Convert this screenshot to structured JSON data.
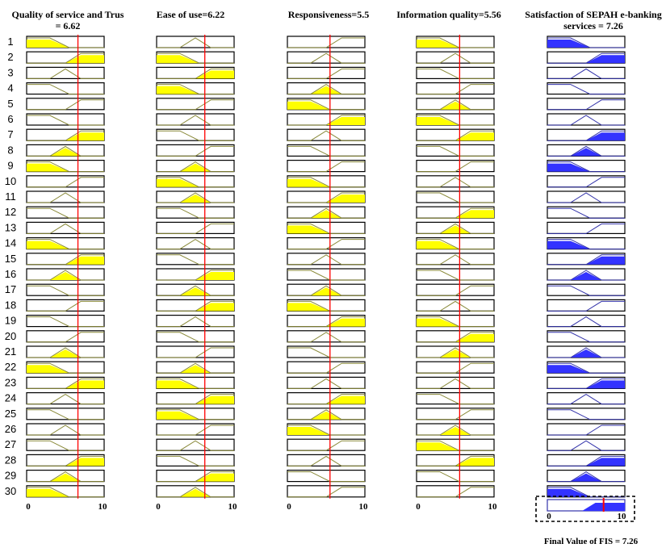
{
  "viewer": {
    "columns": [
      {
        "title_lines": [
          "Quality of service and Trus",
          "= 6.62"
        ],
        "value": 6.62,
        "kind": "input"
      },
      {
        "title_lines": [
          "Ease of use=6.22"
        ],
        "value": 6.22,
        "kind": "input"
      },
      {
        "title_lines": [
          "Responsiveness=5.5"
        ],
        "value": 5.5,
        "kind": "input"
      },
      {
        "title_lines": [
          "Information quality=5.56"
        ],
        "value": 5.56,
        "kind": "input"
      },
      {
        "title_lines": [
          "Satisfaction of SEPAH e-banking",
          "services = 7.26"
        ],
        "value": 7.26,
        "kind": "output"
      }
    ],
    "rule_numbers": [
      "1",
      "2",
      "3",
      "4",
      "5",
      "6",
      "7",
      "8",
      "9",
      "10",
      "11",
      "12",
      "13",
      "14",
      "15",
      "16",
      "17",
      "18",
      "19",
      "20",
      "21",
      "22",
      "23",
      "24",
      "25",
      "26",
      "27",
      "28",
      "29",
      "30"
    ],
    "axis": {
      "min": 0,
      "max": 10,
      "min_label": "0",
      "max_label": "10"
    },
    "final_label": "Final Value of FIS = 7.26",
    "final_value": 7.26,
    "colors": {
      "input_fill": "#ffff00",
      "input_line": "#8a8a3a",
      "output_fill": "#3333ff",
      "output_line": "#3333aa",
      "indicator": "#ff0000",
      "box": "#000000"
    }
  }
}
